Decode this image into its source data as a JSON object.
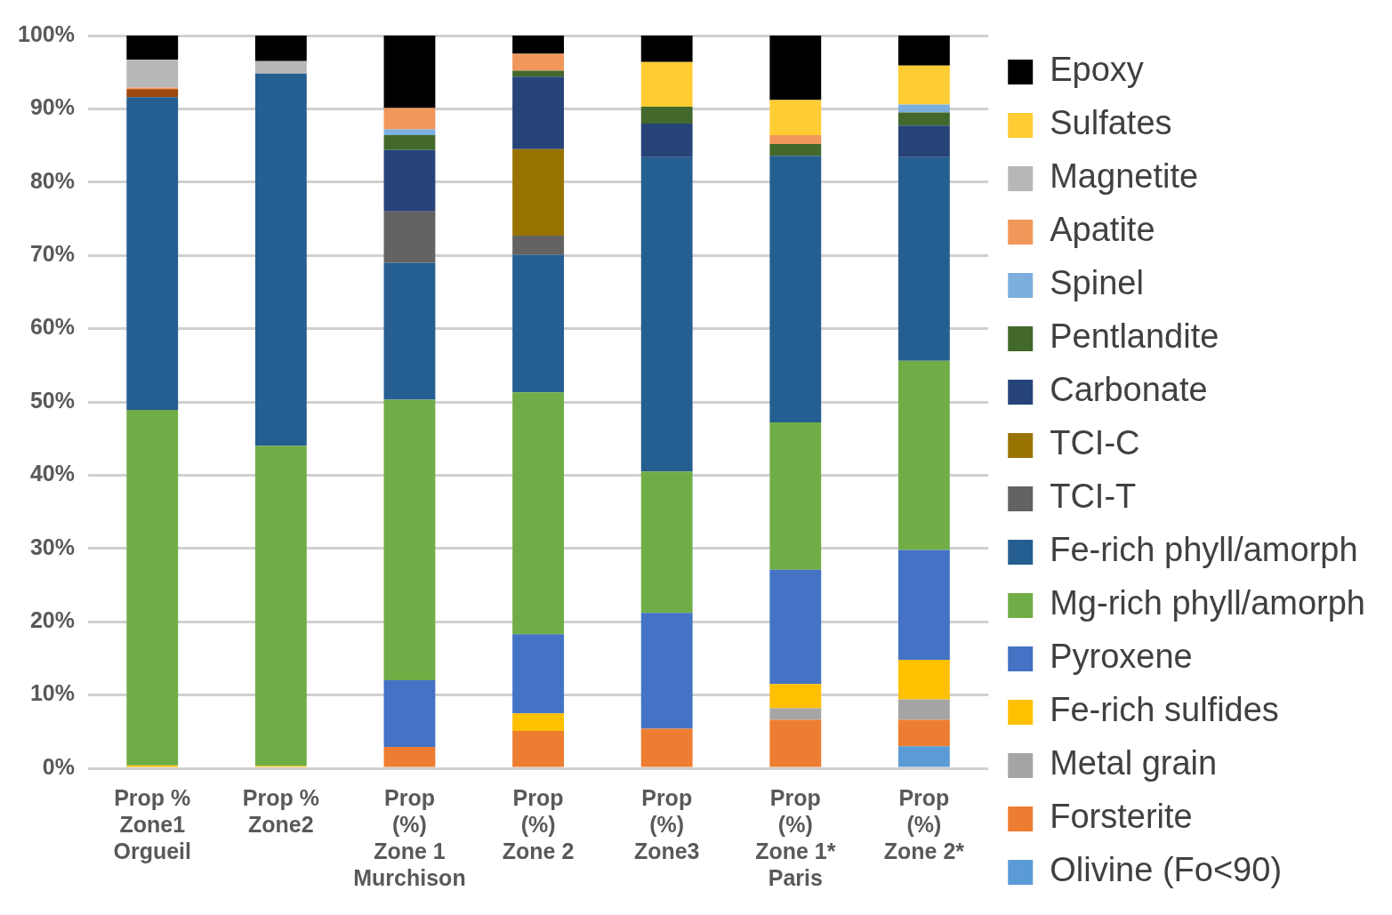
{
  "chart_data": {
    "type": "bar",
    "stacked": true,
    "grid": "y",
    "legend": "right",
    "categories": [
      "Prop %\nZone1\nOrgueil",
      "Prop %\nZone2",
      "Prop\n(%)\nZone 1\nMurchison",
      "Prop\n(%)\nZone 2",
      "Prop\n(%)\nZone3",
      "Prop\n(%)\nZone 1*\nParis",
      "Prop\n(%)\nZone 2*"
    ],
    "ylim": [
      0,
      100
    ],
    "yticks": [
      {
        "value": 0,
        "label": "0%"
      },
      {
        "value": 10,
        "label": "10%"
      },
      {
        "value": 20,
        "label": "20%"
      },
      {
        "value": 30,
        "label": "30%"
      },
      {
        "value": 40,
        "label": "40%"
      },
      {
        "value": 50,
        "label": "50%"
      },
      {
        "value": 60,
        "label": "60%"
      },
      {
        "value": 70,
        "label": "70%"
      },
      {
        "value": 80,
        "label": "80%"
      },
      {
        "value": 90,
        "label": "90%"
      },
      {
        "value": 100,
        "label": "100%"
      }
    ],
    "series": [
      {
        "name": "Olivine (Fo<90)",
        "color": "#5b9bd5",
        "values": [
          0,
          0,
          0,
          0,
          0,
          0,
          3.0
        ]
      },
      {
        "name": "Forsterite",
        "color": "#ed7d31",
        "values": [
          0,
          0,
          2.9,
          5.1,
          5.4,
          6.6,
          3.6
        ]
      },
      {
        "name": "Metal grain",
        "color": "#a5a5a5",
        "values": [
          0,
          0,
          0,
          0,
          0,
          1.6,
          2.8
        ]
      },
      {
        "name": "Fe-rich sulfides",
        "color": "#ffc000",
        "values": [
          0.4,
          0.3,
          0,
          2.4,
          0,
          3.3,
          5.4
        ]
      },
      {
        "name": "Pyroxene",
        "color": "#4472c4",
        "values": [
          0,
          0,
          9.1,
          10.8,
          15.8,
          15.6,
          15.0
        ]
      },
      {
        "name": "Mg-rich phyll/amorph",
        "color": "#70ad47",
        "values": [
          48.5,
          43.7,
          38.3,
          33.0,
          19.3,
          20.1,
          25.8
        ]
      },
      {
        "name": "Fe-rich phyll/amorph",
        "color": "#255e91",
        "values": [
          42.7,
          50.8,
          18.7,
          18.8,
          42.9,
          36.4,
          27.8
        ]
      },
      {
        "name": "TCI-T",
        "color": "#636363",
        "values": [
          0,
          0,
          7.0,
          2.6,
          0,
          0,
          0
        ]
      },
      {
        "name": "TCI-C",
        "color": "#997300",
        "values": [
          0,
          0,
          0,
          11.8,
          0,
          0,
          0
        ]
      },
      {
        "name": "Carbonate",
        "color": "#264478",
        "values": [
          0,
          0,
          8.4,
          9.9,
          4.6,
          0,
          4.3
        ]
      },
      {
        "name": "Pentlandite",
        "color": "#43682b",
        "values": [
          0,
          0,
          2.0,
          0.8,
          2.3,
          1.6,
          1.8
        ]
      },
      {
        "name": "Spinel",
        "color": "#7cafdd",
        "values": [
          0,
          0,
          0.8,
          0,
          0,
          0,
          1.1
        ]
      },
      {
        "color": "#9e480e",
        "values": [
          1.1,
          0,
          0,
          0,
          0,
          0,
          0
        ]
      },
      {
        "name": "Apatite",
        "color": "#f1975a",
        "values": [
          0.2,
          0,
          2.9,
          2.3,
          0,
          1.2,
          0
        ]
      },
      {
        "name": "Magnetite",
        "color": "#b7b7b7",
        "values": [
          3.8,
          1.7,
          0,
          0,
          0,
          0,
          0
        ]
      },
      {
        "name": "Sulfates",
        "color": "#ffcd33",
        "values": [
          0,
          0,
          0,
          0,
          6.1,
          4.8,
          5.3
        ]
      },
      {
        "name": "Epoxy",
        "color": "#000000",
        "values": [
          3.3,
          3.5,
          9.9,
          2.5,
          3.6,
          8.8,
          4.1
        ]
      }
    ]
  }
}
